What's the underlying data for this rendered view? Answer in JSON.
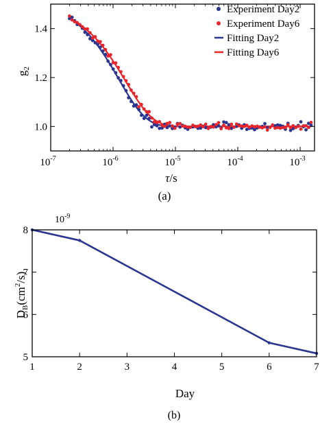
{
  "colors": {
    "day2": "#2a3590",
    "day6": "#e8252a",
    "axis": "#000000"
  },
  "chart_data": [
    {
      "type": "scatter",
      "panel_label": "(a)",
      "xscale": "log",
      "xlabel_main": "τ",
      "xlabel_unit": "/s",
      "ylabel_main": "g",
      "ylabel_sub": "2",
      "xlim": [
        1e-07,
        0.0017
      ],
      "ylim": [
        0.9,
        1.5
      ],
      "xticks": [
        {
          "value": 1e-07,
          "base": "10",
          "exp": "-7"
        },
        {
          "value": 1e-06,
          "base": "10",
          "exp": "-6"
        },
        {
          "value": 1e-05,
          "base": "10",
          "exp": "-5"
        },
        {
          "value": 0.0001,
          "base": "10",
          "exp": "-4"
        },
        {
          "value": 0.001,
          "base": "10",
          "exp": "-3"
        }
      ],
      "yticks": [
        {
          "value": 1.0,
          "label": "1.0"
        },
        {
          "value": 1.2,
          "label": "1.2"
        },
        {
          "value": 1.4,
          "label": "1.4"
        }
      ],
      "legend_position": "top-right",
      "legend": [
        {
          "label": "Experiment Day2",
          "kind": "marker",
          "color_key": "day2"
        },
        {
          "label": "Experiment Day6",
          "kind": "marker",
          "color_key": "day6"
        },
        {
          "label": "Fitting Day2",
          "kind": "line",
          "color_key": "day2"
        },
        {
          "label": "Fitting Day6",
          "kind": "line",
          "color_key": "day6"
        }
      ],
      "series": [
        {
          "label": "Experiment Day2",
          "color_key": "day2",
          "kind": "points",
          "model": {
            "base": 1.0,
            "amp": 0.52,
            "tau": 2.5e-06,
            "beta": 1.0,
            "noise": 0.008,
            "xmin": 2e-07,
            "xmax": 0.0015,
            "n": 95,
            "seed": 11
          }
        },
        {
          "label": "Experiment Day6",
          "color_key": "day6",
          "kind": "points",
          "model": {
            "base": 1.0,
            "amp": 0.5,
            "tau": 3.2e-06,
            "beta": 1.0,
            "noise": 0.007,
            "xmin": 2e-07,
            "xmax": 0.0015,
            "n": 95,
            "seed": 29
          }
        },
        {
          "label": "Fitting Day2",
          "color_key": "day2",
          "kind": "line",
          "model": {
            "base": 1.0,
            "amp": 0.52,
            "tau": 2.5e-06,
            "beta": 1.0,
            "xmin": 2e-07,
            "xmax": 0.0015,
            "n": 160
          }
        },
        {
          "label": "Fitting Day6",
          "color_key": "day6",
          "kind": "line",
          "model": {
            "base": 1.0,
            "amp": 0.5,
            "tau": 3.2e-06,
            "beta": 1.0,
            "xmin": 2e-07,
            "xmax": 0.0015,
            "n": 160
          }
        }
      ]
    },
    {
      "type": "line",
      "panel_label": "(b)",
      "xlabel": "Day",
      "ylabel_main": "D",
      "ylabel_sub": "B",
      "ylabel_rest": "(cm",
      "ylabel_sup": "2",
      "ylabel_end": "/s)",
      "scale_multiplier": "10",
      "scale_exp": "-9",
      "xlim": [
        1,
        7
      ],
      "ylim": [
        5,
        8
      ],
      "xticks": [
        1,
        2,
        3,
        4,
        5,
        6,
        7
      ],
      "yticks": [
        5,
        6,
        7,
        8
      ],
      "series": [
        {
          "color_key": "day2",
          "x": [
            1,
            2,
            6,
            7
          ],
          "y": [
            8.0,
            7.75,
            5.33,
            5.08
          ]
        }
      ]
    }
  ]
}
